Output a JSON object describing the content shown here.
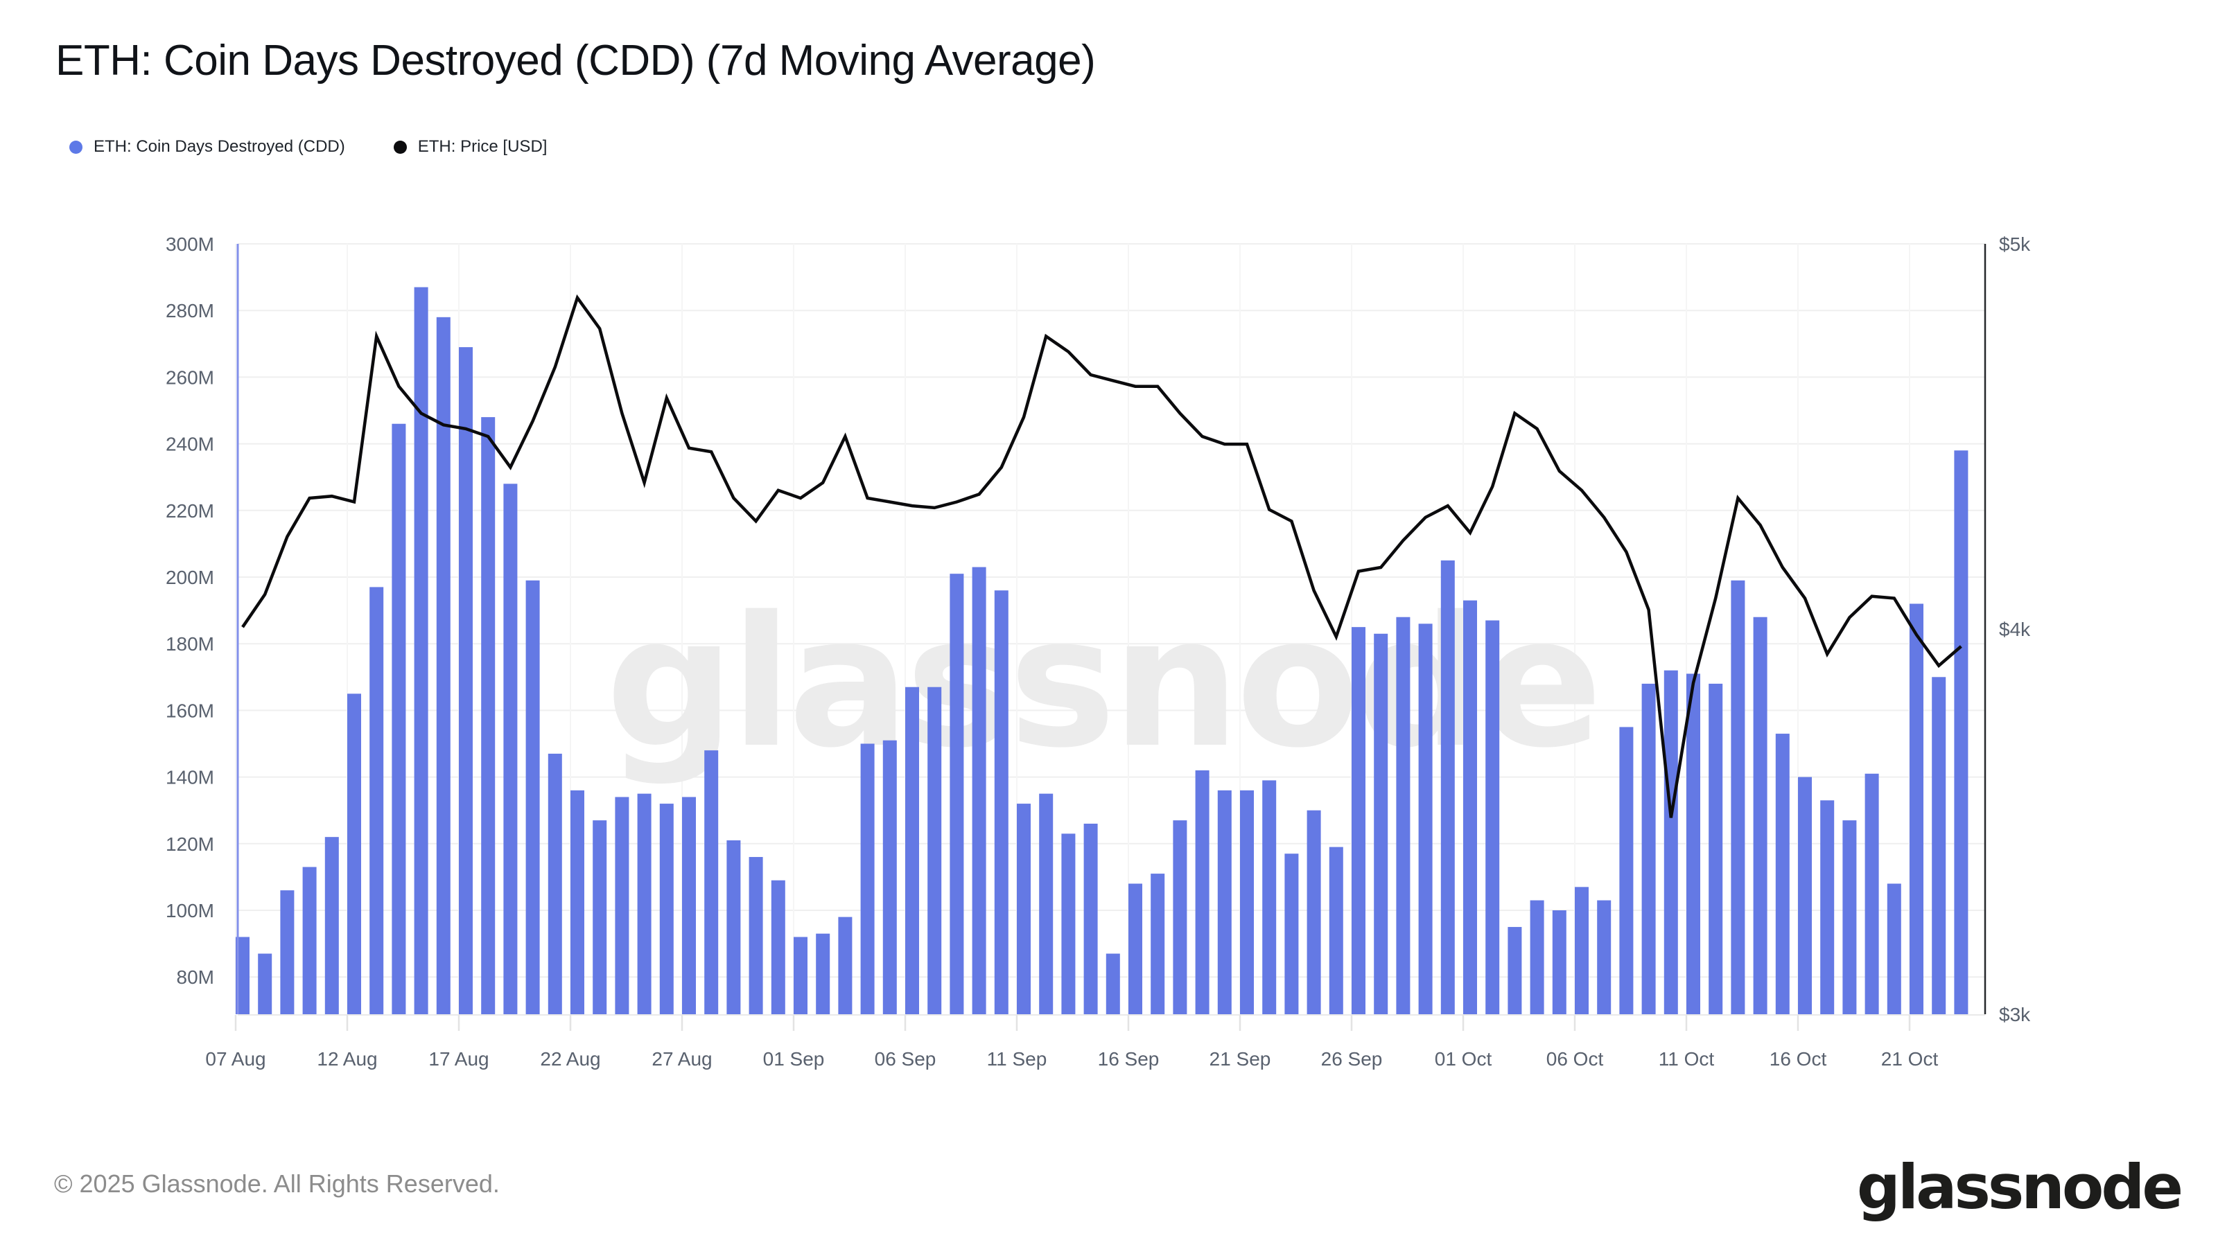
{
  "header": {
    "title": "ETH: Coin Days Destroyed (CDD) (7d Moving Average)"
  },
  "legend": [
    {
      "label": "ETH: Coin Days Destroyed (CDD)",
      "color": "#5d79e7"
    },
    {
      "label": "ETH: Price [USD]",
      "color": "#0c0c0e"
    }
  ],
  "watermark": {
    "text": "glassnode"
  },
  "footer": {
    "copyright": "© 2025 Glassnode. All Rights Reserved.",
    "logo_text": "glassnode"
  },
  "colors": {
    "background": "#ffffff",
    "bar": "#6479e4",
    "price_line": "#0b0b0d",
    "grid_horizontal": "#efefef",
    "grid_vertical": "#f5f5f5",
    "axis_left_line": "#8390ea",
    "axis_right_line": "#26282b",
    "baseline": "#e9e9e9",
    "tick_mark": "#e3e3e3",
    "axis_text": "#59616e",
    "watermark": "#ececec",
    "title_text": "#101318"
  },
  "chart_data": {
    "type": "bar",
    "subtype": "bar+line dual axis combo",
    "title": "ETH: Coin Days Destroyed (CDD) (7d Moving Average)",
    "categories": [
      "07 Aug",
      "08 Aug",
      "09 Aug",
      "10 Aug",
      "11 Aug",
      "12 Aug",
      "13 Aug",
      "14 Aug",
      "15 Aug",
      "16 Aug",
      "17 Aug",
      "18 Aug",
      "19 Aug",
      "20 Aug",
      "21 Aug",
      "22 Aug",
      "23 Aug",
      "24 Aug",
      "25 Aug",
      "26 Aug",
      "27 Aug",
      "28 Aug",
      "29 Aug",
      "30 Aug",
      "31 Aug",
      "01 Sep",
      "02 Sep",
      "03 Sep",
      "04 Sep",
      "05 Sep",
      "06 Sep",
      "07 Sep",
      "08 Sep",
      "09 Sep",
      "10 Sep",
      "11 Sep",
      "12 Sep",
      "13 Sep",
      "14 Sep",
      "15 Sep",
      "16 Sep",
      "17 Sep",
      "18 Sep",
      "19 Sep",
      "20 Sep",
      "21 Sep",
      "22 Sep",
      "23 Sep",
      "24 Sep",
      "25 Sep",
      "26 Sep",
      "27 Sep",
      "28 Sep",
      "29 Sep",
      "30 Sep",
      "01 Oct",
      "02 Oct",
      "03 Oct",
      "04 Oct",
      "05 Oct",
      "06 Oct",
      "07 Oct",
      "08 Oct",
      "09 Oct",
      "10 Oct",
      "11 Oct",
      "12 Oct",
      "13 Oct",
      "14 Oct",
      "15 Oct",
      "16 Oct",
      "17 Oct",
      "18 Oct",
      "19 Oct",
      "20 Oct",
      "21 Oct",
      "22 Oct",
      "23 Oct"
    ],
    "x_tick_labels": [
      "07 Aug",
      "12 Aug",
      "17 Aug",
      "22 Aug",
      "27 Aug",
      "01 Sep",
      "06 Sep",
      "11 Sep",
      "16 Sep",
      "21 Sep",
      "26 Sep",
      "01 Oct",
      "06 Oct",
      "11 Oct",
      "16 Oct",
      "21 Oct"
    ],
    "x_tick_every": 5,
    "series": [
      {
        "name": "ETH: Coin Days Destroyed (CDD)",
        "type": "bar",
        "axis": "left",
        "unit": "M coin-days",
        "values": [
          92,
          87,
          106,
          113,
          122,
          165,
          197,
          246,
          287,
          278,
          269,
          248,
          228,
          199,
          147,
          136,
          127,
          134,
          135,
          132,
          134,
          148,
          121,
          116,
          109,
          92,
          93,
          98,
          150,
          151,
          167,
          167,
          201,
          203,
          196,
          132,
          135,
          123,
          126,
          87,
          108,
          111,
          127,
          142,
          136,
          136,
          139,
          117,
          130,
          119,
          185,
          183,
          188,
          186,
          205,
          193,
          187,
          95,
          103,
          100,
          107,
          103,
          155,
          168,
          172,
          171,
          168,
          199,
          188,
          153,
          140,
          133,
          127,
          141,
          108,
          192,
          170,
          238
        ]
      },
      {
        "name": "ETH: Price [USD]",
        "type": "line",
        "axis": "right",
        "unit": "USD",
        "values": [
          4005,
          4090,
          4240,
          4340,
          4345,
          4330,
          4760,
          4630,
          4560,
          4530,
          4520,
          4500,
          4420,
          4540,
          4680,
          4860,
          4780,
          4560,
          4380,
          4600,
          4470,
          4460,
          4340,
          4280,
          4360,
          4340,
          4380,
          4500,
          4340,
          4330,
          4320,
          4315,
          4330,
          4350,
          4420,
          4550,
          4760,
          4720,
          4660,
          4645,
          4630,
          4630,
          4560,
          4500,
          4480,
          4480,
          4310,
          4280,
          4100,
          3980,
          4150,
          4160,
          4230,
          4290,
          4320,
          4250,
          4370,
          4560,
          4520,
          4410,
          4360,
          4290,
          4200,
          4050,
          3510,
          3860,
          4080,
          4340,
          4270,
          4160,
          4080,
          3935,
          4030,
          4085,
          4080,
          3985,
          3905,
          3955
        ]
      }
    ],
    "left_axis": {
      "tick_labels": [
        "300M",
        "280M",
        "260M",
        "240M",
        "220M",
        "200M",
        "180M",
        "160M",
        "140M",
        "120M",
        "100M",
        "80M"
      ],
      "tick_values": [
        300,
        280,
        260,
        240,
        220,
        200,
        180,
        160,
        140,
        120,
        100,
        80
      ],
      "unit": "M"
    },
    "right_axis": {
      "tick_labels": [
        "$5k",
        "$4k",
        "$3k"
      ],
      "tick_values": [
        5000,
        4000,
        3000
      ],
      "min": 3000,
      "max": 5000
    },
    "grid": true,
    "legend_position": "top-left"
  }
}
